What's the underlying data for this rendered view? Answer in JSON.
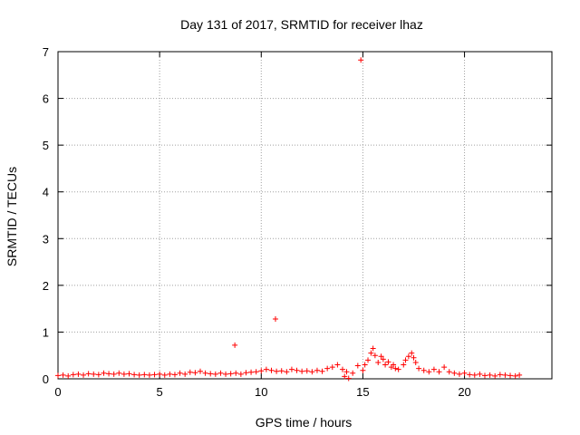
{
  "chart_data": {
    "type": "scatter",
    "title": "Day 131 of 2017, SRMTID for receiver lhaz",
    "xlabel": "GPS time / hours",
    "ylabel": "SRMTID / TECUs",
    "xlim": [
      0,
      24.3
    ],
    "ylim": [
      0,
      7
    ],
    "xticks": [
      0,
      5,
      10,
      15,
      20
    ],
    "yticks": [
      0,
      1,
      2,
      3,
      4,
      5,
      6,
      7
    ],
    "grid": true,
    "marker": "+",
    "color": "#ff0000",
    "series": [
      {
        "x": [
          0.0,
          0.25,
          0.5,
          0.75,
          1.0,
          1.25,
          1.5,
          1.75,
          2.0,
          2.25,
          2.5,
          2.75,
          3.0,
          3.25,
          3.5,
          3.75,
          4.0,
          4.25,
          4.5,
          4.75,
          5.0,
          5.25,
          5.5,
          5.75,
          6.0,
          6.25,
          6.5,
          6.75,
          7.0,
          7.25,
          7.5,
          7.75,
          8.0,
          8.25,
          8.5,
          8.75,
          9.0,
          9.25,
          9.5,
          9.75,
          10.0,
          10.25,
          10.5,
          10.75,
          11.0,
          11.25,
          11.5,
          11.75,
          12.0,
          12.25,
          12.5,
          12.75,
          13.0,
          13.25,
          13.5,
          13.75,
          14.0,
          14.1,
          14.2,
          14.3,
          14.5,
          14.75,
          15.0,
          15.1,
          15.25,
          15.4,
          15.5,
          15.6,
          15.75,
          15.9,
          16.0,
          16.1,
          16.25,
          16.4,
          16.5,
          16.6,
          16.75,
          17.0,
          17.1,
          17.25,
          17.4,
          17.5,
          17.6,
          17.75,
          18.0,
          18.25,
          18.5,
          18.75,
          19.0,
          19.25,
          19.5,
          19.75,
          20.0,
          20.25,
          20.5,
          20.75,
          21.0,
          21.25,
          21.5,
          21.75,
          22.0,
          22.25,
          22.5,
          22.7,
          8.7,
          10.7,
          14.9
        ],
        "y": [
          0.07,
          0.08,
          0.06,
          0.09,
          0.1,
          0.08,
          0.11,
          0.1,
          0.09,
          0.12,
          0.11,
          0.1,
          0.12,
          0.1,
          0.11,
          0.09,
          0.08,
          0.09,
          0.08,
          0.09,
          0.1,
          0.08,
          0.1,
          0.09,
          0.12,
          0.1,
          0.14,
          0.13,
          0.16,
          0.12,
          0.11,
          0.1,
          0.12,
          0.1,
          0.11,
          0.12,
          0.1,
          0.13,
          0.14,
          0.15,
          0.17,
          0.2,
          0.18,
          0.16,
          0.17,
          0.15,
          0.2,
          0.18,
          0.16,
          0.17,
          0.15,
          0.18,
          0.16,
          0.22,
          0.25,
          0.3,
          0.2,
          0.05,
          0.15,
          0.01,
          0.12,
          0.28,
          0.18,
          0.3,
          0.4,
          0.55,
          0.65,
          0.5,
          0.35,
          0.48,
          0.42,
          0.3,
          0.36,
          0.25,
          0.3,
          0.22,
          0.2,
          0.3,
          0.4,
          0.48,
          0.55,
          0.45,
          0.35,
          0.22,
          0.18,
          0.15,
          0.2,
          0.15,
          0.25,
          0.15,
          0.12,
          0.1,
          0.12,
          0.09,
          0.08,
          0.1,
          0.07,
          0.08,
          0.06,
          0.09,
          0.08,
          0.07,
          0.06,
          0.08,
          0.72,
          1.28,
          6.82
        ]
      }
    ]
  }
}
